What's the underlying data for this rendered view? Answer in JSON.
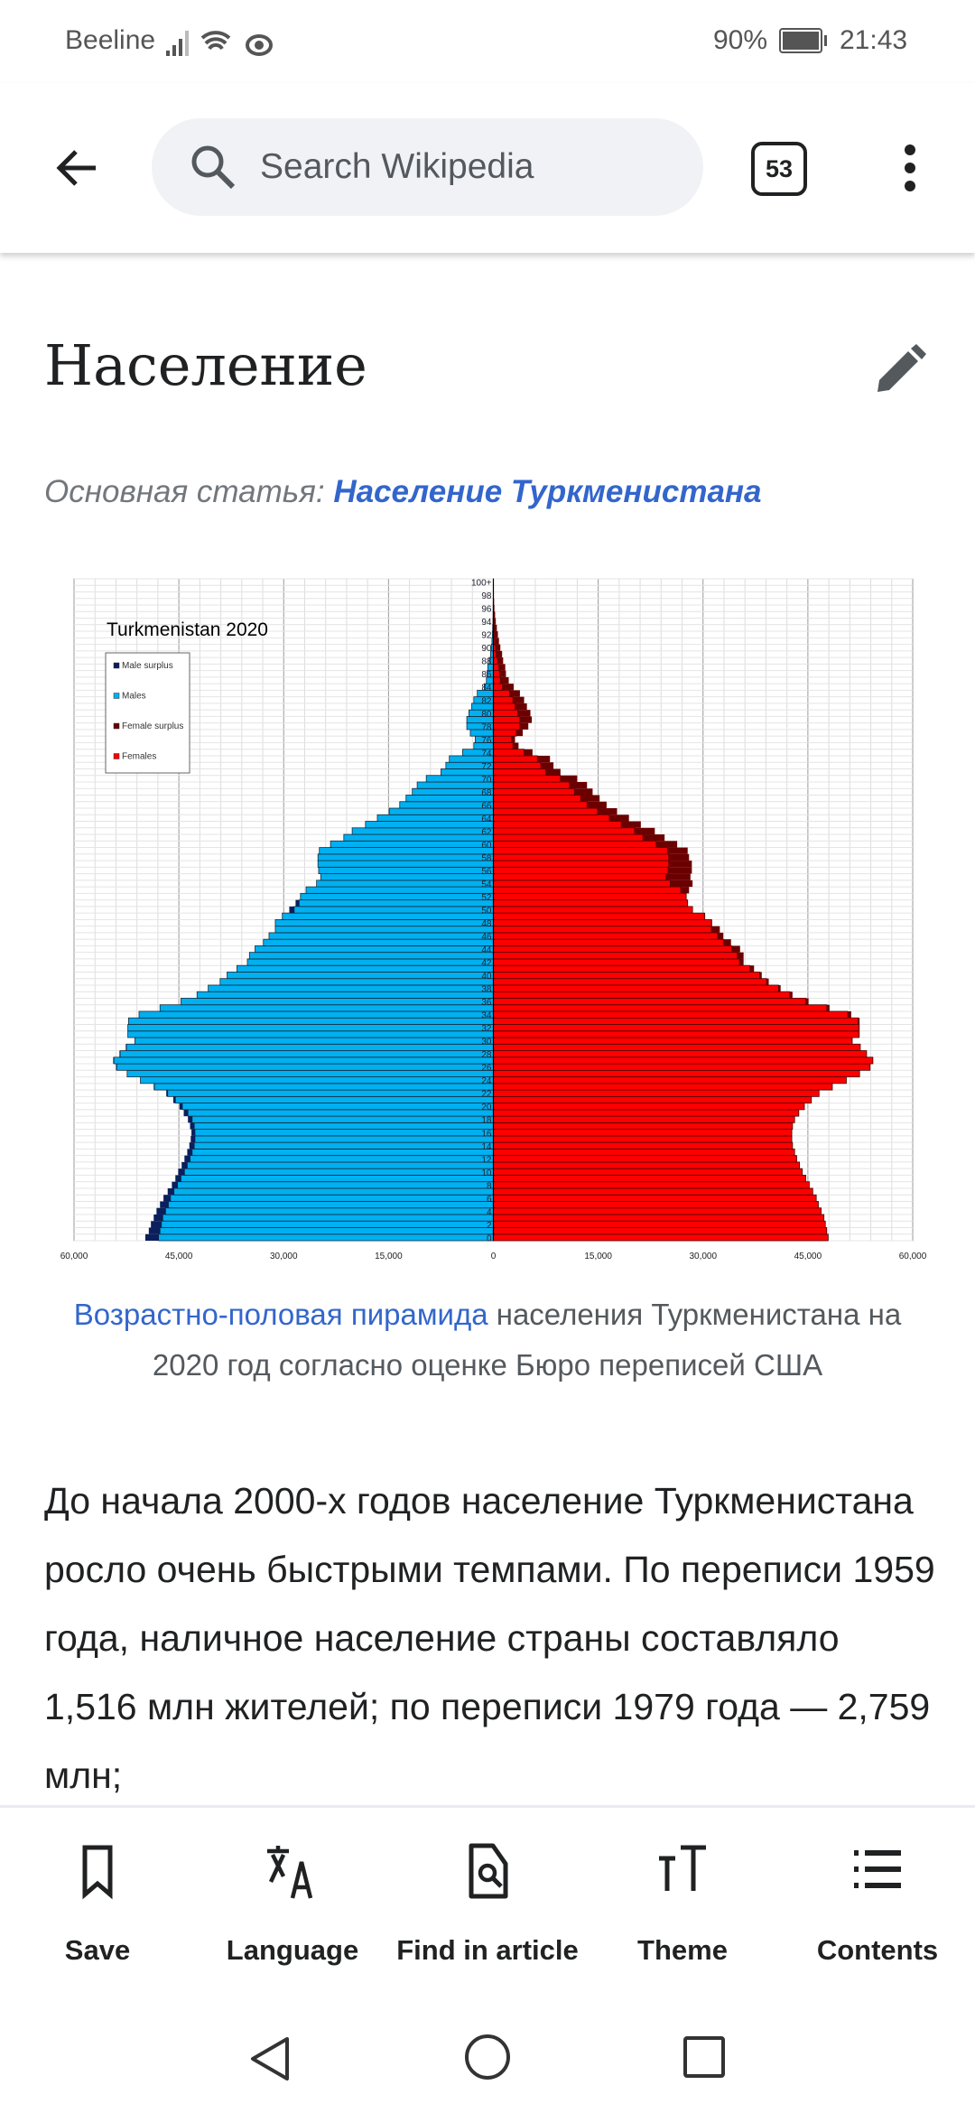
{
  "status": {
    "carrier": "Beeline",
    "battery": "90%",
    "time": "21:43"
  },
  "topbar": {
    "search_placeholder": "Search Wikipedia",
    "tab_count": "53"
  },
  "article": {
    "heading": "Население",
    "hatnote_prefix": "Основная статья: ",
    "hatnote_link": "Население Туркменистана",
    "caption_link": "Возрастно-половая пирамида",
    "caption_rest": " населения Туркменистана на 2020 год согласно оценке Бюро переписей США",
    "body": "До начала 2000-х годов население Туркменистана росло очень быстрыми темпами. По переписи 1959 года, наличное население страны составляло 1,516 млн жителей; по переписи 1979 года — 2,759 млн;"
  },
  "toolbar": {
    "items": [
      {
        "label": "Save"
      },
      {
        "label": "Language"
      },
      {
        "label": "Find in article"
      },
      {
        "label": "Theme"
      },
      {
        "label": "Contents"
      }
    ]
  },
  "chart_data": {
    "type": "bar",
    "title": "Turkmenistan 2020",
    "legend": [
      "Male surplus",
      "Males",
      "Female surplus",
      "Females"
    ],
    "legend_placement": "top-left",
    "colors": {
      "male": "#00b0f0",
      "female": "#ff0000",
      "male_surplus": "#0a1f5c",
      "female_surplus": "#6b0000"
    },
    "xlim": [
      -60000,
      60000
    ],
    "x_ticks": [
      "60,000",
      "45,000",
      "30,000",
      "15,000",
      "0",
      "15,000",
      "30,000",
      "45,000",
      "60,000"
    ],
    "age_labels": [
      "0",
      "2",
      "4",
      "6",
      "8",
      "10",
      "12",
      "14",
      "16",
      "18",
      "20",
      "22",
      "24",
      "26",
      "28",
      "30",
      "32",
      "34",
      "36",
      "38",
      "40",
      "42",
      "44",
      "46",
      "48",
      "50",
      "52",
      "54",
      "56",
      "58",
      "60",
      "62",
      "64",
      "66",
      "68",
      "70",
      "72",
      "74",
      "76",
      "78",
      "80",
      "82",
      "84",
      "86",
      "88",
      "90",
      "92",
      "94",
      "96",
      "98",
      "100+"
    ],
    "males": [
      49800,
      49300,
      49000,
      48600,
      48200,
      47700,
      47200,
      46600,
      46000,
      45500,
      45100,
      44600,
      44200,
      43800,
      43500,
      43300,
      43200,
      43400,
      43700,
      44300,
      44900,
      45800,
      46800,
      48600,
      50500,
      52400,
      54000,
      54400,
      53500,
      52600,
      51300,
      52300,
      52300,
      52200,
      50700,
      47700,
      44700,
      42400,
      40800,
      39100,
      38100,
      36700,
      35200,
      34900,
      34100,
      32900,
      32100,
      31200,
      31200,
      30200,
      29200,
      28300,
      27600,
      26800,
      25300,
      24700,
      25000,
      25100,
      25100,
      24900,
      23300,
      21400,
      20200,
      18300,
      16600,
      14900,
      13400,
      12500,
      11600,
      10900,
      9600,
      7500,
      6800,
      6300,
      4400,
      2800,
      2600,
      3300,
      3800,
      3800,
      3500,
      3100,
      2800,
      2300,
      1300,
      1000,
      900,
      800,
      600,
      400,
      300,
      200,
      150,
      100,
      60,
      40,
      30,
      20,
      15,
      10,
      10
    ],
    "females": [
      47900,
      47700,
      47500,
      47300,
      46900,
      46500,
      46200,
      45700,
      45200,
      44700,
      44200,
      43800,
      43400,
      43100,
      42800,
      42700,
      42700,
      42800,
      43100,
      43700,
      44500,
      45500,
      46600,
      48500,
      50500,
      52400,
      53900,
      54300,
      53400,
      52500,
      51400,
      52400,
      52400,
      52400,
      51200,
      48100,
      45100,
      42800,
      41100,
      39400,
      38400,
      37300,
      35800,
      35800,
      35300,
      34000,
      32900,
      32400,
      31300,
      30300,
      28500,
      27800,
      27600,
      28000,
      28500,
      28200,
      28400,
      28400,
      28000,
      27800,
      26300,
      24500,
      23100,
      21100,
      19400,
      17700,
      16200,
      15200,
      14200,
      13400,
      12000,
      9600,
      8600,
      8100,
      5600,
      3600,
      3100,
      4200,
      5000,
      5500,
      5300,
      4800,
      4400,
      3800,
      2900,
      2200,
      1800,
      1700,
      1400,
      1250,
      1000,
      800,
      650,
      500,
      350,
      250,
      150,
      100,
      60,
      40,
      30
    ]
  }
}
